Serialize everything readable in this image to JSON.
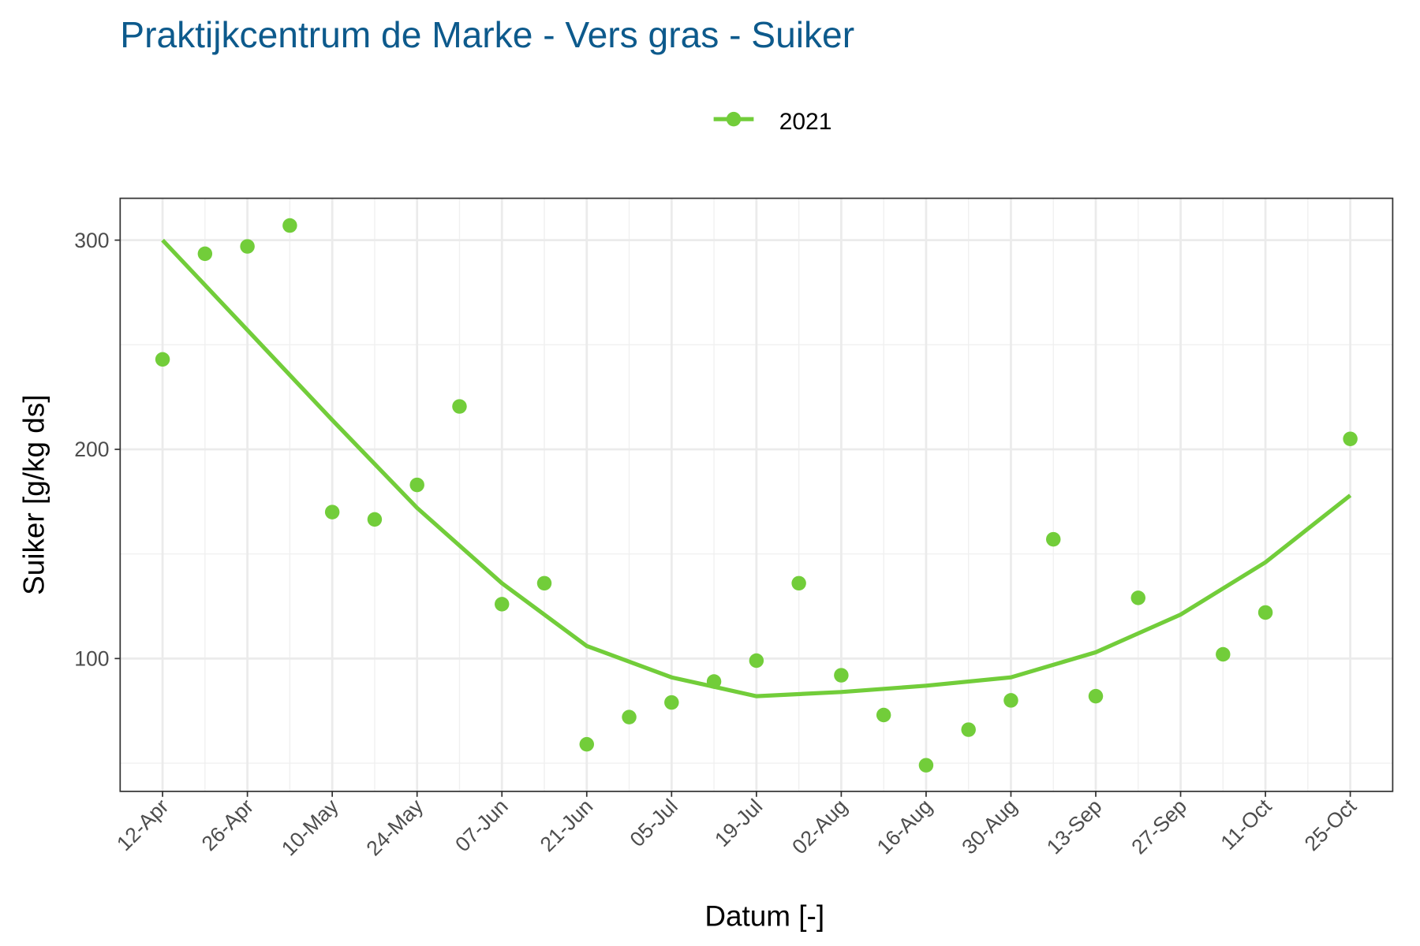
{
  "chart_data": {
    "type": "scatter",
    "title": "Praktijkcentrum de Marke - Vers gras - Suiker",
    "x_label": "Datum [-]",
    "y_label": "Suiker [g/kg ds]",
    "x": [
      "12-Apr",
      "19-Apr",
      "26-Apr",
      "03-May",
      "10-May",
      "17-May",
      "24-May",
      "31-May",
      "07-Jun",
      "14-Jun",
      "21-Jun",
      "28-Jun",
      "05-Jul",
      "12-Jul",
      "19-Jul",
      "26-Jul",
      "02-Aug",
      "09-Aug",
      "16-Aug",
      "23-Aug",
      "30-Aug",
      "06-Sep",
      "13-Sep",
      "20-Sep",
      "04-Oct",
      "11-Oct",
      "25-Oct"
    ],
    "series": [
      {
        "name": "2021",
        "color": "#72cd3a",
        "values": [
          243,
          293.5,
          297,
          307,
          170,
          166.5,
          183,
          220.5,
          126,
          136,
          59,
          72,
          79,
          89,
          99,
          136,
          92,
          73,
          49,
          66,
          80,
          157,
          82,
          129,
          102,
          122,
          205
        ]
      }
    ],
    "smooth": {
      "x": [
        "12-Apr",
        "26-Apr",
        "10-May",
        "24-May",
        "07-Jun",
        "21-Jun",
        "05-Jul",
        "19-Jul",
        "02-Aug",
        "16-Aug",
        "30-Aug",
        "13-Sep",
        "27-Sep",
        "11-Oct",
        "25-Oct"
      ],
      "values": [
        300,
        257,
        214,
        172,
        136,
        106,
        91,
        82,
        84,
        87,
        91,
        103,
        121,
        146,
        178
      ]
    },
    "xlim": [
      "05-Apr",
      "01-Nov"
    ],
    "xticks": [
      "12-Apr",
      "26-Apr",
      "10-May",
      "24-May",
      "07-Jun",
      "21-Jun",
      "05-Jul",
      "19-Jul",
      "02-Aug",
      "16-Aug",
      "30-Aug",
      "13-Sep",
      "27-Sep",
      "11-Oct",
      "25-Oct"
    ],
    "ylim": [
      36.5,
      320
    ],
    "yticks": [
      100,
      200,
      300
    ],
    "grid": true,
    "legend": "top"
  }
}
